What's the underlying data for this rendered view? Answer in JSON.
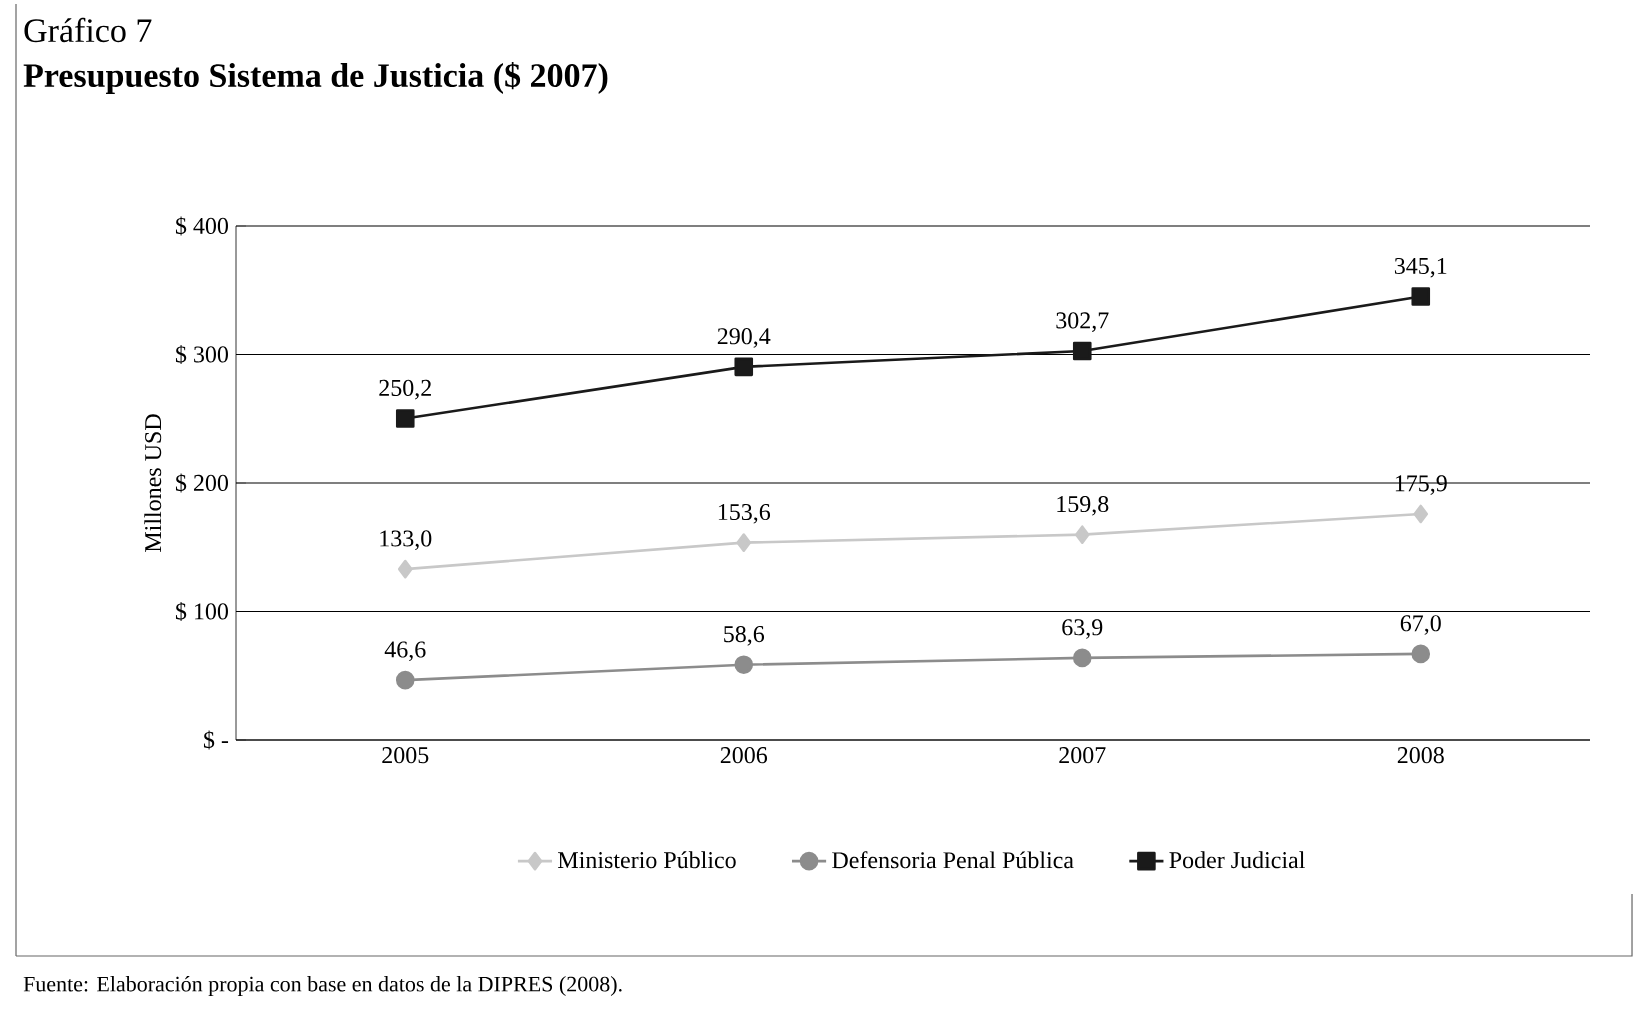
{
  "chart_data": {
    "type": "line",
    "title": "Gráfico 7",
    "subtitle": "Presupuesto Sistema de Justicia ($ 2007)",
    "ylabel": "Millones USD",
    "categories": [
      "2005",
      "2006",
      "2007",
      "2008"
    ],
    "series": [
      {
        "name": "Ministerio Público",
        "color": "#c8c8c8",
        "marker": "diamond",
        "values": [
          133.0,
          153.6,
          159.8,
          175.9
        ],
        "value_labels": [
          "133,0",
          "153,6",
          "159,8",
          "175,9"
        ]
      },
      {
        "name": "Defensoria Penal Pública",
        "color": "#8c8c8c",
        "marker": "circle",
        "values": [
          46.6,
          58.6,
          63.9,
          67.0
        ],
        "value_labels": [
          "46,6",
          "58,6",
          "63,9",
          "67,0"
        ]
      },
      {
        "name": "Poder Judicial",
        "color": "#1a1a1a",
        "marker": "square",
        "values": [
          250.2,
          290.4,
          302.7,
          345.1
        ],
        "value_labels": [
          "250,2",
          "290,4",
          "302,7",
          "345,1"
        ]
      }
    ],
    "ylim": [
      0,
      400
    ],
    "yticks": [
      {
        "value": 0,
        "label": "$ -"
      },
      {
        "value": 100,
        "label": "$ 100"
      },
      {
        "value": 200,
        "label": "$ 200"
      },
      {
        "value": 300,
        "label": "$ 300"
      },
      {
        "value": 400,
        "label": "$ 400"
      }
    ],
    "grid": "y",
    "legend": "bottom",
    "line_style": "solid",
    "annotations": [
      "Fuente: Elaboración propia con base en datos de la DIPRES (2008)."
    ]
  }
}
